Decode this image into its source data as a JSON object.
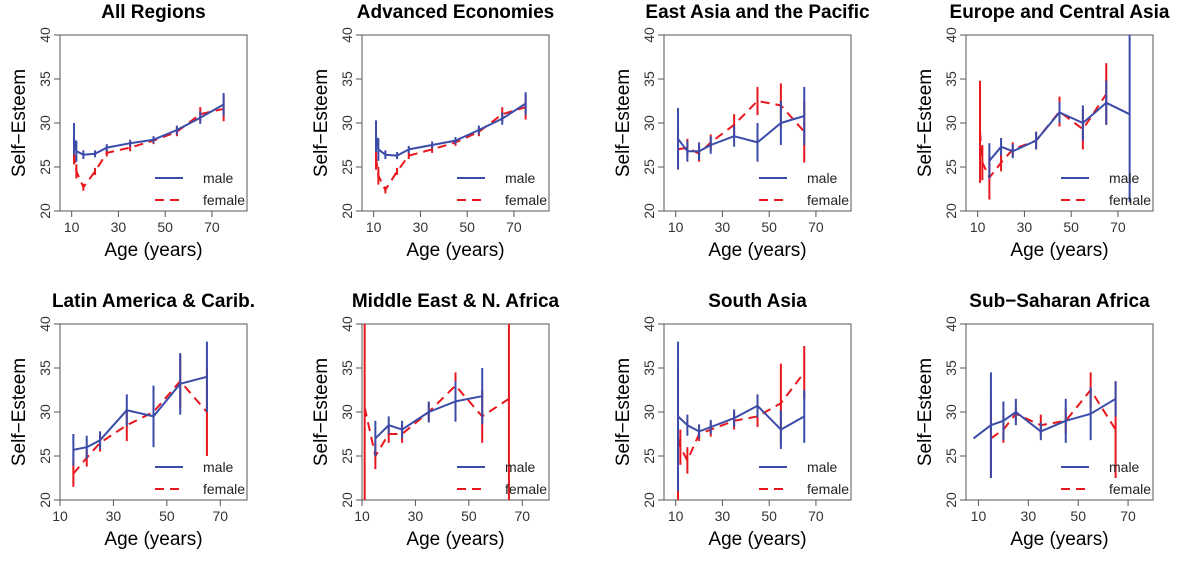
{
  "chart_data": [
    {
      "type": "line",
      "title": "All Regions",
      "xlabel": "Age (years)",
      "ylabel": "Self−Esteem",
      "xlim": [
        5,
        85
      ],
      "ylim": [
        20,
        40
      ],
      "xticks": [
        10,
        30,
        50,
        70
      ],
      "yticks": [
        20,
        25,
        30,
        35,
        40
      ],
      "legend": "bottom-right",
      "series": [
        {
          "name": "male",
          "color": "#3B4BA8",
          "dash": "solid",
          "x": [
            11,
            12,
            15,
            20,
            25,
            35,
            45,
            55,
            65,
            75
          ],
          "y": [
            28.2,
            26.8,
            26.4,
            26.5,
            27.2,
            27.7,
            28.1,
            29.2,
            30.6,
            32.1
          ],
          "err": [
            1.8,
            1.2,
            0.5,
            0.4,
            0.4,
            0.4,
            0.4,
            0.5,
            0.7,
            1.3
          ]
        },
        {
          "name": "female",
          "color": "#E8171D",
          "dash": "dashed",
          "x": [
            11,
            12,
            15,
            20,
            25,
            35,
            45,
            55,
            65,
            75
          ],
          "y": [
            26.5,
            24.5,
            22.7,
            24.5,
            26.6,
            27.2,
            28.0,
            29.0,
            31.0,
            31.6
          ],
          "err": [
            1.2,
            0.8,
            0.4,
            0.4,
            0.4,
            0.4,
            0.4,
            0.5,
            0.8,
            1.4
          ]
        }
      ]
    },
    {
      "type": "line",
      "title": "Advanced Economies",
      "xlabel": "Age (years)",
      "ylabel": "Self−Esteem",
      "xlim": [
        5,
        85
      ],
      "ylim": [
        20,
        40
      ],
      "xticks": [
        10,
        30,
        50,
        70
      ],
      "yticks": [
        20,
        25,
        30,
        35,
        40
      ],
      "legend": "bottom-right",
      "series": [
        {
          "name": "male",
          "color": "#3B4BA8",
          "dash": "solid",
          "x": [
            11,
            12,
            15,
            20,
            25,
            35,
            45,
            55,
            65,
            75
          ],
          "y": [
            28.5,
            27.0,
            26.4,
            26.3,
            27.0,
            27.5,
            28.0,
            29.2,
            30.5,
            32.2
          ],
          "err": [
            1.8,
            1.3,
            0.5,
            0.4,
            0.4,
            0.4,
            0.4,
            0.5,
            0.7,
            1.3
          ]
        },
        {
          "name": "female",
          "color": "#E8171D",
          "dash": "dashed",
          "x": [
            11,
            12,
            15,
            20,
            25,
            35,
            45,
            55,
            65,
            75
          ],
          "y": [
            26.0,
            24.0,
            22.4,
            24.5,
            26.3,
            27.0,
            27.8,
            29.0,
            31.0,
            31.8
          ],
          "err": [
            1.3,
            1.0,
            0.4,
            0.4,
            0.4,
            0.4,
            0.4,
            0.5,
            0.8,
            1.4
          ]
        }
      ]
    },
    {
      "type": "line",
      "title": "East Asia and the Pacific",
      "xlabel": "Age (years)",
      "ylabel": "Self−Esteem",
      "xlim": [
        5,
        85
      ],
      "ylim": [
        20,
        40
      ],
      "xticks": [
        10,
        30,
        50,
        70
      ],
      "yticks": [
        20,
        25,
        30,
        35,
        40
      ],
      "legend": "bottom-right",
      "series": [
        {
          "name": "male",
          "color": "#3B4BA8",
          "dash": "solid",
          "x": [
            11,
            15,
            20,
            25,
            35,
            45,
            55,
            65
          ],
          "y": [
            28.2,
            26.8,
            26.8,
            27.5,
            28.5,
            27.8,
            30.0,
            30.8
          ],
          "err": [
            3.5,
            1.2,
            1.0,
            1.0,
            1.2,
            2.2,
            2.5,
            3.3
          ]
        },
        {
          "name": "female",
          "color": "#E8171D",
          "dash": "dashed",
          "x": [
            11,
            15,
            20,
            25,
            35,
            45,
            55,
            65
          ],
          "y": [
            27.0,
            27.2,
            26.5,
            27.8,
            29.8,
            32.5,
            32.0,
            29.0
          ],
          "err": [
            2.0,
            1.0,
            0.9,
            0.9,
            1.2,
            1.6,
            2.5,
            3.5
          ]
        }
      ]
    },
    {
      "type": "line",
      "title": "Europe and Central Asia",
      "xlabel": "Age (years)",
      "ylabel": "Self−Esteem",
      "xlim": [
        5,
        85
      ],
      "ylim": [
        20,
        40
      ],
      "xticks": [
        10,
        30,
        50,
        70
      ],
      "yticks": [
        20,
        25,
        30,
        35,
        40
      ],
      "legend": "bottom-right",
      "series": [
        {
          "name": "male",
          "color": "#3B4BA8",
          "dash": "solid",
          "x": [
            15,
            20,
            25,
            35,
            45,
            55,
            65,
            75
          ],
          "y": [
            25.7,
            27.3,
            26.8,
            28.0,
            31.2,
            30.0,
            32.3,
            31.0
          ],
          "err": [
            2.0,
            1.0,
            0.8,
            1.0,
            1.2,
            2.0,
            2.5,
            10.0
          ]
        },
        {
          "name": "female",
          "color": "#E8171D",
          "dash": "dashed",
          "x": [
            11,
            12,
            15,
            20,
            25,
            35,
            45,
            55,
            65
          ],
          "y": [
            29.0,
            25.5,
            23.8,
            25.5,
            27.0,
            28.0,
            31.3,
            29.3,
            33.3
          ],
          "err": [
            5.8,
            2.0,
            2.5,
            1.0,
            0.8,
            1.0,
            1.7,
            2.3,
            3.5
          ]
        }
      ]
    },
    {
      "type": "line",
      "title": "Latin America & Carib.",
      "xlabel": "Age (years)",
      "ylabel": "Self−Esteem",
      "xlim": [
        10,
        80
      ],
      "ylim": [
        20,
        40
      ],
      "xticks": [
        10,
        30,
        50,
        70
      ],
      "yticks": [
        20,
        25,
        30,
        35,
        40
      ],
      "legend": "bottom-right",
      "series": [
        {
          "name": "male",
          "color": "#3B4BA8",
          "dash": "solid",
          "x": [
            15,
            20,
            25,
            35,
            45,
            55,
            65
          ],
          "y": [
            25.7,
            26.0,
            26.8,
            30.2,
            29.5,
            33.2,
            34.0
          ],
          "err": [
            1.8,
            1.3,
            1.0,
            1.8,
            3.5,
            3.5,
            4.0
          ]
        },
        {
          "name": "female",
          "color": "#E8171D",
          "dash": "dashed",
          "x": [
            15,
            20,
            25,
            35,
            45,
            55,
            65
          ],
          "y": [
            23.0,
            24.8,
            26.5,
            28.5,
            30.0,
            33.5,
            30.0
          ],
          "err": [
            1.5,
            1.0,
            1.0,
            1.8,
            2.5,
            3.0,
            5.0
          ]
        }
      ]
    },
    {
      "type": "line",
      "title": "Middle East & N. Africa",
      "xlabel": "Age (years)",
      "ylabel": "Self−Esteem",
      "xlim": [
        10,
        80
      ],
      "ylim": [
        20,
        40
      ],
      "xticks": [
        10,
        30,
        50,
        70
      ],
      "yticks": [
        20,
        25,
        30,
        35,
        40
      ],
      "legend": "bottom-right",
      "series": [
        {
          "name": "male",
          "color": "#3B4BA8",
          "dash": "solid",
          "x": [
            15,
            20,
            25,
            35,
            45,
            55
          ],
          "y": [
            27.0,
            28.5,
            28.0,
            30.0,
            31.2,
            31.8
          ],
          "err": [
            2.0,
            1.0,
            1.0,
            1.2,
            2.3,
            3.2
          ]
        },
        {
          "name": "female",
          "color": "#E8171D",
          "dash": "dashed",
          "x": [
            11,
            15,
            20,
            25,
            35,
            45,
            55,
            65
          ],
          "y": [
            30.5,
            25.0,
            27.5,
            27.5,
            30.0,
            33.0,
            29.5,
            31.5
          ],
          "err": [
            11.0,
            1.5,
            1.0,
            1.0,
            1.0,
            1.5,
            3.0,
            12.0
          ]
        }
      ]
    },
    {
      "type": "line",
      "title": "South Asia",
      "xlabel": "Age (years)",
      "ylabel": "Self−Esteem",
      "xlim": [
        5,
        85
      ],
      "ylim": [
        20,
        40
      ],
      "xticks": [
        10,
        30,
        50,
        70
      ],
      "yticks": [
        20,
        25,
        30,
        35,
        40
      ],
      "legend": "bottom-right",
      "series": [
        {
          "name": "male",
          "color": "#3B4BA8",
          "dash": "solid",
          "x": [
            11,
            15,
            20,
            25,
            35,
            45,
            55,
            65
          ],
          "y": [
            29.5,
            28.5,
            27.8,
            28.3,
            29.3,
            30.7,
            28.0,
            29.5
          ],
          "err": [
            8.5,
            1.2,
            0.8,
            0.8,
            1.0,
            1.3,
            2.2,
            3.0
          ]
        },
        {
          "name": "female",
          "color": "#E8171D",
          "dash": "dashed",
          "x": [
            11,
            12,
            15,
            20,
            25,
            35,
            45,
            55,
            65
          ],
          "y": [
            27.0,
            26.0,
            24.5,
            27.5,
            28.0,
            29.0,
            29.5,
            31.0,
            34.5
          ],
          "err": [
            8.0,
            2.0,
            1.5,
            0.8,
            0.8,
            1.0,
            1.2,
            4.5,
            3.0
          ]
        }
      ]
    },
    {
      "type": "line",
      "title": "Sub−Saharan Africa",
      "xlabel": "Age (years)",
      "ylabel": "Self−Esteem",
      "xlim": [
        5,
        80
      ],
      "ylim": [
        20,
        40
      ],
      "xticks": [
        10,
        30,
        50,
        70
      ],
      "yticks": [
        20,
        25,
        30,
        35,
        40
      ],
      "legend": "bottom-right",
      "series": [
        {
          "name": "male",
          "color": "#3B4BA8",
          "dash": "solid",
          "x": [
            8,
            15,
            20,
            25,
            35,
            45,
            55,
            65
          ],
          "y": [
            27.0,
            28.5,
            29.0,
            30.0,
            27.8,
            29.0,
            29.8,
            31.5
          ],
          "err": [
            0,
            6.0,
            2.2,
            1.5,
            1.0,
            2.5,
            3.0,
            2.0
          ]
        },
        {
          "name": "female",
          "color": "#E8171D",
          "dash": "dashed",
          "x": [
            15,
            20,
            25,
            35,
            45,
            55,
            65
          ],
          "y": [
            27.0,
            28.0,
            29.8,
            28.5,
            29.0,
            32.5,
            28.0
          ],
          "err": [
            4.5,
            1.5,
            0.8,
            1.2,
            1.5,
            2.0,
            5.5
          ]
        }
      ]
    }
  ]
}
